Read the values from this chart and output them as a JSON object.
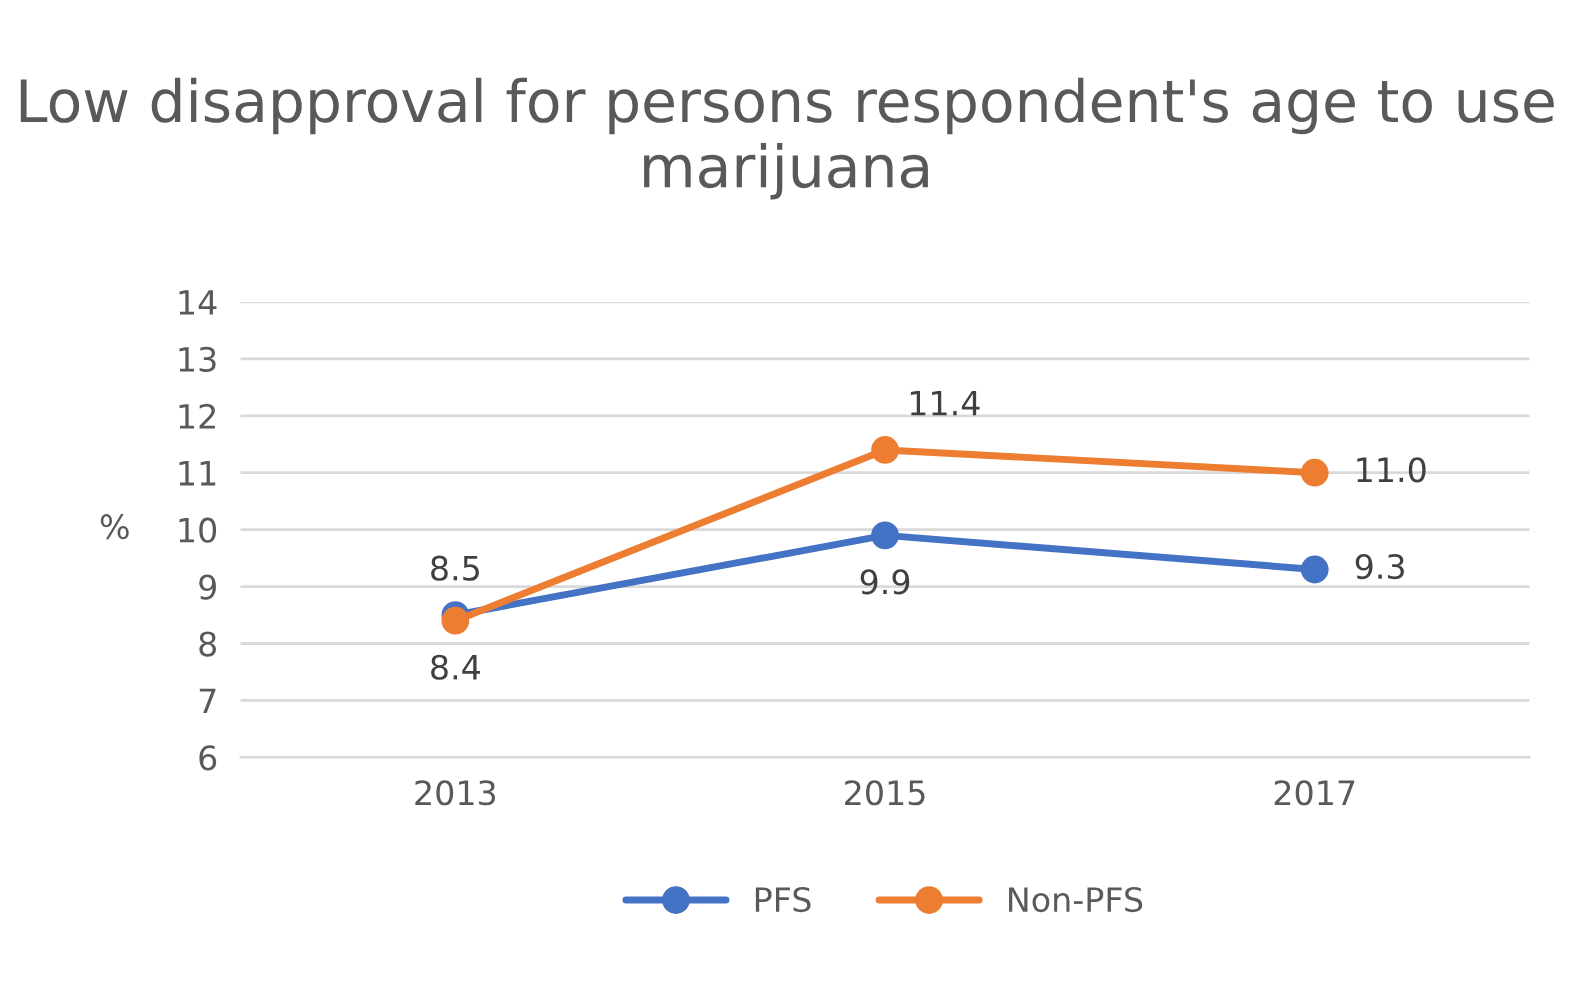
{
  "chart_data": {
    "type": "line",
    "title": "Low disapproval for persons respondent's age to use marijuana",
    "ylabel": "%",
    "categories": [
      "2013",
      "2015",
      "2017"
    ],
    "series": [
      {
        "name": "PFS",
        "color": "#4472c4",
        "values": [
          8.5,
          9.9,
          9.3
        ],
        "value_labels": [
          "8.5",
          "9.9",
          "9.3"
        ]
      },
      {
        "name": "Non-PFS",
        "color": "#ed7d31",
        "values": [
          8.4,
          11.4,
          11.0
        ],
        "value_labels": [
          "8.4",
          "11.4",
          "11.0"
        ]
      }
    ],
    "ylim": [
      6,
      14
    ],
    "yticks": [
      6,
      7,
      8,
      9,
      10,
      11,
      12,
      13,
      14
    ],
    "grid": "y",
    "legend": "bottom",
    "marker": "circle",
    "line_style": "solid"
  }
}
